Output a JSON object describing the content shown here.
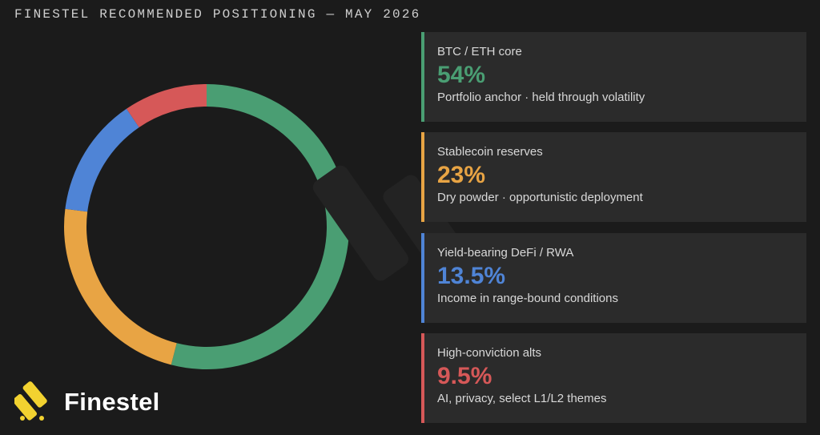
{
  "header": {
    "title": "FINESTEL RECOMMENDED POSITIONING — MAY 2026"
  },
  "brand": {
    "name": "Finestel",
    "logo_color": "#f2d230"
  },
  "chart_data": {
    "type": "donut",
    "categories": [
      "BTC / ETH core",
      "Stablecoin reserves",
      "Yield-bearing DeFi / RWA",
      "High-conviction alts"
    ],
    "values": [
      54,
      23,
      13.5,
      9.5
    ],
    "colors": [
      "#4a9e73",
      "#e8a444",
      "#4f84d6",
      "#d65858"
    ],
    "legend": "right"
  },
  "cards": [
    {
      "label": "BTC / ETH core",
      "value": "54%",
      "desc": "Portfolio anchor · held through volatility",
      "color": "#4a9e73"
    },
    {
      "label": "Stablecoin reserves",
      "value": "23%",
      "desc": "Dry powder · opportunistic deployment",
      "color": "#e8a444"
    },
    {
      "label": "Yield-bearing DeFi / RWA",
      "value": "13.5%",
      "desc": "Income in range-bound conditions",
      "color": "#4f84d6"
    },
    {
      "label": "High-conviction alts",
      "value": "9.5%",
      "desc": "AI, privacy, select L1/L2 themes",
      "color": "#d65858"
    }
  ]
}
